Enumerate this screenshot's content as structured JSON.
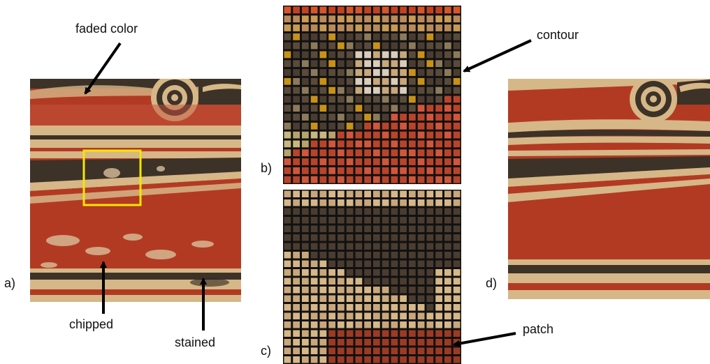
{
  "labels": {
    "faded": "faded color",
    "chipped": "chipped",
    "stained": "stained",
    "contour": "contour",
    "patch": "patch"
  },
  "panels": {
    "a": "a)",
    "b": "b)",
    "c": "c)",
    "d": "d)"
  },
  "colors": {
    "terracotta": "#b23a23",
    "terracotta_dark": "#9c2f1c",
    "cream": "#d6b787",
    "cream_light": "#e2c9a0",
    "black": "#3c3228",
    "highlight": "#f5e600",
    "grid_line": "#111111"
  }
}
